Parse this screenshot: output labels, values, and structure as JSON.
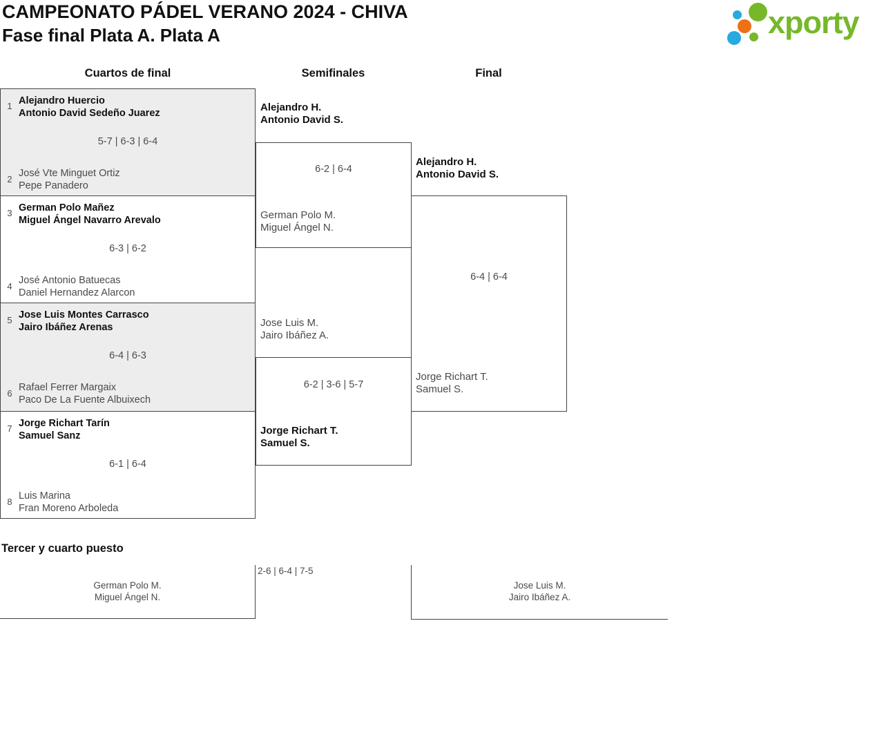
{
  "header": {
    "title": "CAMPEONATO PÁDEL VERANO 2024 - CHIVA",
    "subtitle": "Fase final Plata A. Plata A"
  },
  "logo": {
    "brand": "xporty"
  },
  "columns": {
    "quarterfinals": "Cuartos de final",
    "semifinals": "Semifinales",
    "final": "Final"
  },
  "quarterfinals": [
    {
      "seed_top": "1",
      "team_top_line1": "Alejandro Huercio",
      "team_top_line2": "Antonio David Sedeño Juarez",
      "score": "5-7 | 6-3 | 6-4",
      "seed_bottom": "2",
      "team_bottom_line1": "José Vte Minguet Ortiz",
      "team_bottom_line2": "Pepe Panadero"
    },
    {
      "seed_top": "3",
      "team_top_line1": "German Polo Mañez",
      "team_top_line2": "Miguel Ángel Navarro Arevalo",
      "score": "6-3 | 6-2",
      "seed_bottom": "4",
      "team_bottom_line1": "José Antonio Batuecas",
      "team_bottom_line2": "Daniel Hernandez Alarcon"
    },
    {
      "seed_top": "5",
      "team_top_line1": "Jose Luis Montes Carrasco",
      "team_top_line2": "Jairo Ibáñez Arenas",
      "score": "6-4 | 6-3",
      "seed_bottom": "6",
      "team_bottom_line1": "Rafael Ferrer Margaix",
      "team_bottom_line2": "Paco De La Fuente Albuixech"
    },
    {
      "seed_top": "7",
      "team_top_line1": "Jorge Richart Tarín",
      "team_top_line2": "Samuel Sanz",
      "score": "6-1 | 6-4",
      "seed_bottom": "8",
      "team_bottom_line1": "Luis Marina",
      "team_bottom_line2": "Fran Moreno Arboleda"
    }
  ],
  "semifinals": [
    {
      "top_line1": "Alejandro H.",
      "top_line2": "Antonio David S.",
      "score": "6-2 | 6-4",
      "bottom_line1": "German Polo M.",
      "bottom_line2": "Miguel Ángel N."
    },
    {
      "top_line1": "Jose Luis M.",
      "top_line2": "Jairo Ibáñez A.",
      "score": "6-2 | 3-6 | 5-7",
      "bottom_line1": "Jorge Richart T.",
      "bottom_line2": "Samuel S."
    }
  ],
  "final": {
    "top_line1": "Alejandro H.",
    "top_line2": "Antonio David S.",
    "score": "6-4 | 6-4",
    "bottom_line1": "Jorge Richart T.",
    "bottom_line2": "Samuel S."
  },
  "third_place": {
    "heading": "Tercer y cuarto puesto",
    "score": "2-6 | 6-4 | 7-5",
    "left_line1": "German Polo M.",
    "left_line2": "Miguel Ángel N.",
    "right_line1": "Jose Luis M.",
    "right_line2": "Jairo Ibáñez A."
  },
  "colors": {
    "brand_green": "#76b82a",
    "brand_blue": "#29a9e1",
    "brand_orange": "#ee7017",
    "shaded_box": "#ededed",
    "border": "#444444"
  }
}
